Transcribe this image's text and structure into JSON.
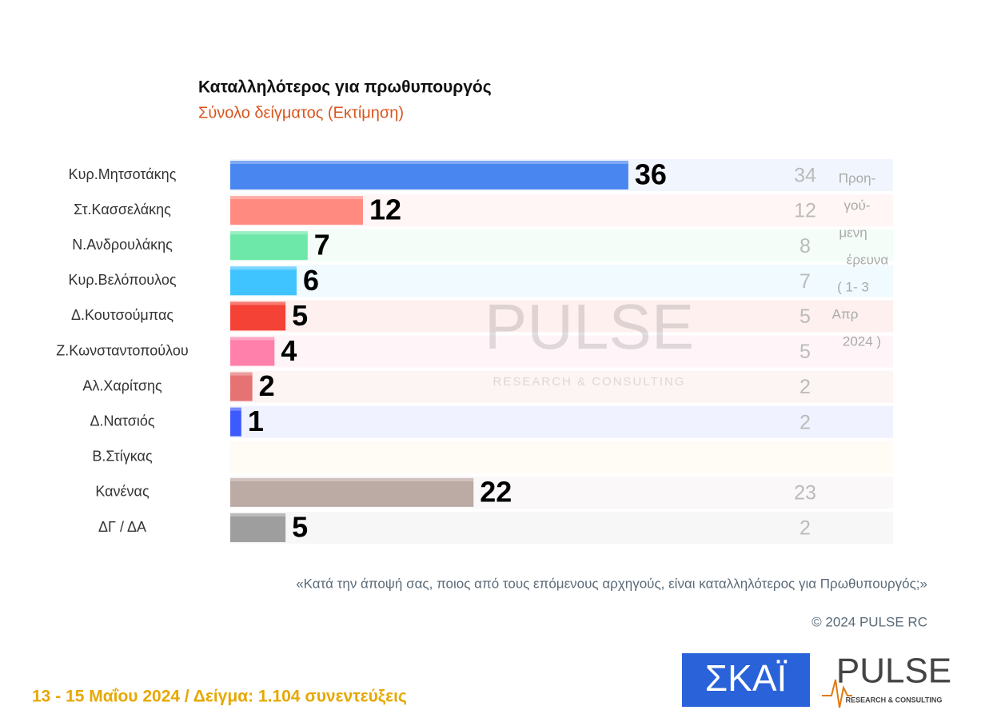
{
  "chart_data": {
    "type": "bar",
    "orientation": "horizontal",
    "title": "Καταλληλότερος για πρωθυπουργός",
    "subtitle": "Σύνολο δείγματος   (Εκτίμηση)",
    "categories": [
      "Κυρ.Μητσοτάκης",
      "Στ.Κασσελάκης",
      "Ν.Ανδρουλάκης",
      "Κυρ.Βελόπουλος",
      "Δ.Κουτσούμπας",
      "Ζ.Κωνσταντοπούλου",
      "Αλ.Χαρίτσης",
      "Δ.Νατσιός",
      "Β.Στίγκας",
      "Κανένας",
      "ΔΓ / ΔΑ"
    ],
    "values": [
      36,
      12,
      7,
      6,
      5,
      4,
      2,
      1,
      null,
      22,
      5
    ],
    "colors": [
      "#4a86f0",
      "#ff8a80",
      "#6ee8a8",
      "#40c4ff",
      "#f44336",
      "#ff80ab",
      "#e57373",
      "#3d5afe",
      "#ffcc80",
      "#bcaaa4",
      "#9e9e9e"
    ],
    "previous_values": [
      34,
      12,
      8,
      7,
      5,
      5,
      2,
      2,
      null,
      23,
      2
    ],
    "previous_note": [
      "Προη-",
      "γού-",
      "μενη",
      "έρευνα",
      "( 1- 3",
      "Απρ",
      "2024 )"
    ],
    "question": "«Κατά την άποψή σας, ποιος από τους επόμενους αρχηγούς, είναι καταλληλότερος για Πρωθυπουργός;»",
    "copyright": "© 2024 PULSE RC",
    "footer": "13 - 15  Μαΐου 2024  /  Δείγμα:  1.104 συνεντεύξεις",
    "watermark": [
      "PULSE",
      "RESEARCH & CONSULTING"
    ],
    "logos": [
      "ΣΚΑΪ",
      "PULSE",
      "RESEARCH & CONSULTING"
    ]
  }
}
